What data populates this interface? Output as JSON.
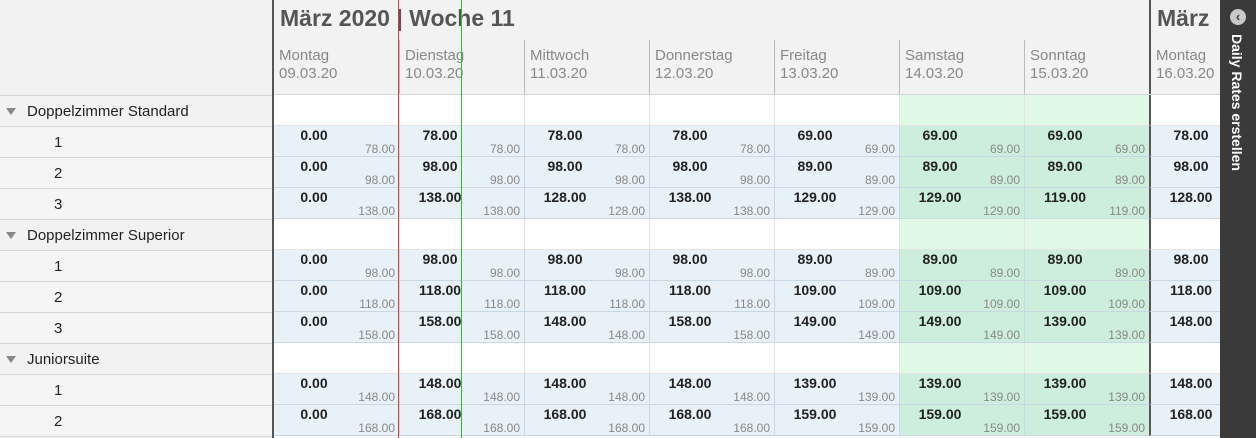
{
  "weeks": [
    {
      "title": "März 2020 | Woche 11"
    },
    {
      "title": "März"
    }
  ],
  "days": [
    {
      "name": "Montag",
      "date": "09.03.20",
      "weekend": false,
      "week_start": false
    },
    {
      "name": "Dienstag",
      "date": "10.03.20",
      "weekend": false,
      "week_start": false
    },
    {
      "name": "Mittwoch",
      "date": "11.03.20",
      "weekend": false,
      "week_start": false
    },
    {
      "name": "Donnerstag",
      "date": "12.03.20",
      "weekend": false,
      "week_start": false
    },
    {
      "name": "Freitag",
      "date": "13.03.20",
      "weekend": false,
      "week_start": false
    },
    {
      "name": "Samstag",
      "date": "14.03.20",
      "weekend": true,
      "week_start": false
    },
    {
      "name": "Sonntag",
      "date": "15.03.20",
      "weekend": true,
      "week_start": false
    },
    {
      "name": "Montag",
      "date": "16.03.20",
      "weekend": false,
      "week_start": true
    }
  ],
  "categories": [
    {
      "name": "Doppelzimmer Standard",
      "rows": [
        {
          "label": "1",
          "cells": [
            [
              "0.00",
              "78.00"
            ],
            [
              "78.00",
              "78.00"
            ],
            [
              "78.00",
              "78.00"
            ],
            [
              "78.00",
              "78.00"
            ],
            [
              "69.00",
              "69.00"
            ],
            [
              "69.00",
              "69.00"
            ],
            [
              "69.00",
              "69.00"
            ],
            [
              "78.00",
              ""
            ]
          ]
        },
        {
          "label": "2",
          "cells": [
            [
              "0.00",
              "98.00"
            ],
            [
              "98.00",
              "98.00"
            ],
            [
              "98.00",
              "98.00"
            ],
            [
              "98.00",
              "98.00"
            ],
            [
              "89.00",
              "89.00"
            ],
            [
              "89.00",
              "89.00"
            ],
            [
              "89.00",
              "89.00"
            ],
            [
              "98.00",
              ""
            ]
          ]
        },
        {
          "label": "3",
          "cells": [
            [
              "0.00",
              "138.00"
            ],
            [
              "138.00",
              "138.00"
            ],
            [
              "128.00",
              "128.00"
            ],
            [
              "138.00",
              "138.00"
            ],
            [
              "129.00",
              "129.00"
            ],
            [
              "129.00",
              "129.00"
            ],
            [
              "119.00",
              "119.00"
            ],
            [
              "128.00",
              ""
            ]
          ]
        }
      ]
    },
    {
      "name": "Doppelzimmer Superior",
      "rows": [
        {
          "label": "1",
          "cells": [
            [
              "0.00",
              "98.00"
            ],
            [
              "98.00",
              "98.00"
            ],
            [
              "98.00",
              "98.00"
            ],
            [
              "98.00",
              "98.00"
            ],
            [
              "89.00",
              "89.00"
            ],
            [
              "89.00",
              "89.00"
            ],
            [
              "89.00",
              "89.00"
            ],
            [
              "98.00",
              ""
            ]
          ]
        },
        {
          "label": "2",
          "cells": [
            [
              "0.00",
              "118.00"
            ],
            [
              "118.00",
              "118.00"
            ],
            [
              "118.00",
              "118.00"
            ],
            [
              "118.00",
              "118.00"
            ],
            [
              "109.00",
              "109.00"
            ],
            [
              "109.00",
              "109.00"
            ],
            [
              "109.00",
              "109.00"
            ],
            [
              "118.00",
              ""
            ]
          ]
        },
        {
          "label": "3",
          "cells": [
            [
              "0.00",
              "158.00"
            ],
            [
              "158.00",
              "158.00"
            ],
            [
              "148.00",
              "148.00"
            ],
            [
              "158.00",
              "158.00"
            ],
            [
              "149.00",
              "149.00"
            ],
            [
              "149.00",
              "149.00"
            ],
            [
              "139.00",
              "139.00"
            ],
            [
              "148.00",
              ""
            ]
          ]
        }
      ]
    },
    {
      "name": "Juniorsuite",
      "rows": [
        {
          "label": "1",
          "cells": [
            [
              "0.00",
              "148.00"
            ],
            [
              "148.00",
              "148.00"
            ],
            [
              "148.00",
              "148.00"
            ],
            [
              "148.00",
              "148.00"
            ],
            [
              "139.00",
              "139.00"
            ],
            [
              "139.00",
              "139.00"
            ],
            [
              "139.00",
              "139.00"
            ],
            [
              "148.00",
              ""
            ]
          ]
        },
        {
          "label": "2",
          "cells": [
            [
              "0.00",
              "168.00"
            ],
            [
              "168.00",
              "168.00"
            ],
            [
              "168.00",
              "168.00"
            ],
            [
              "168.00",
              "168.00"
            ],
            [
              "159.00",
              "159.00"
            ],
            [
              "159.00",
              "159.00"
            ],
            [
              "159.00",
              "159.00"
            ],
            [
              "168.00",
              ""
            ]
          ]
        }
      ]
    }
  ],
  "side_panel": {
    "label": "Daily Rates erstellen",
    "icon": "chevron-left-icon"
  },
  "markers": {
    "past_line_color": "#e53935",
    "today_line_color": "#22cc22"
  }
}
